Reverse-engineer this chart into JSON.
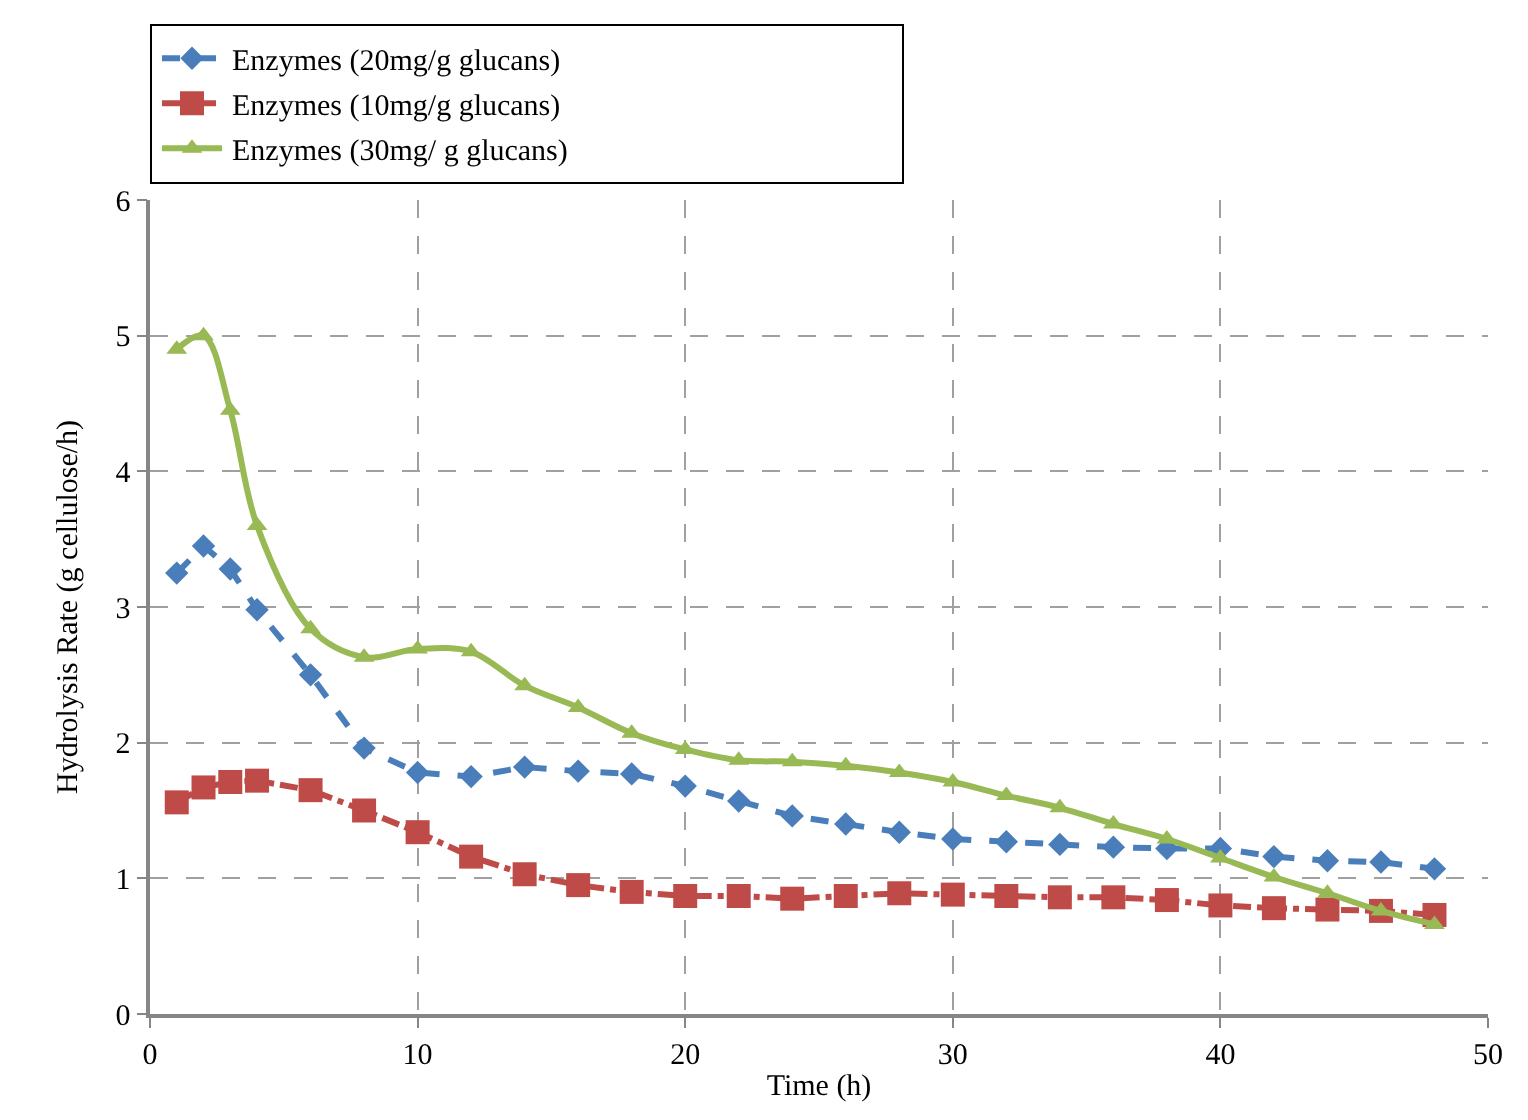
{
  "chart_data": {
    "type": "line",
    "xlabel": "Time (h)",
    "ylabel": "Hydrolysis Rate (g cellulose/h)",
    "x": [
      1,
      2,
      3,
      4,
      6,
      8,
      10,
      12,
      14,
      16,
      18,
      20,
      22,
      24,
      26,
      28,
      30,
      32,
      34,
      36,
      38,
      40,
      42,
      44,
      46,
      48
    ],
    "xlim": [
      0,
      50
    ],
    "xticks": [
      0,
      10,
      20,
      30,
      40,
      50
    ],
    "ylim": [
      0,
      6
    ],
    "yticks": [
      0,
      1,
      2,
      3,
      4,
      5,
      6
    ],
    "grid": true,
    "legend": "top",
    "series": [
      {
        "name": "Enzymes (20mg/g glucans)",
        "color": "#4a7ebb",
        "marker": "diamond",
        "line_style": "dashed",
        "values": [
          3.25,
          3.45,
          3.28,
          2.98,
          2.5,
          1.96,
          1.78,
          1.75,
          1.82,
          1.79,
          1.77,
          1.68,
          1.57,
          1.46,
          1.4,
          1.34,
          1.29,
          1.27,
          1.25,
          1.23,
          1.22,
          1.22,
          1.16,
          1.13,
          1.12,
          1.07
        ]
      },
      {
        "name": "Enzymes (10mg/g glucans)",
        "color": "#be4b48",
        "marker": "square",
        "line_style": "dashdot",
        "values": [
          1.56,
          1.67,
          1.71,
          1.72,
          1.65,
          1.5,
          1.34,
          1.16,
          1.03,
          0.95,
          0.9,
          0.87,
          0.87,
          0.85,
          0.87,
          0.89,
          0.88,
          0.87,
          0.86,
          0.86,
          0.84,
          0.8,
          0.78,
          0.77,
          0.76,
          0.73
        ]
      },
      {
        "name": "Enzymes (30mg/ g glucans)",
        "color": "#98b954",
        "marker": "triangle",
        "line_style": "solid",
        "values": [
          4.9,
          5.0,
          4.45,
          3.6,
          2.84,
          2.63,
          2.69,
          2.67,
          2.42,
          2.26,
          2.07,
          1.95,
          1.87,
          1.86,
          1.83,
          1.78,
          1.71,
          1.61,
          1.52,
          1.4,
          1.29,
          1.15,
          1.01,
          0.89,
          0.76,
          0.66
        ]
      }
    ]
  }
}
